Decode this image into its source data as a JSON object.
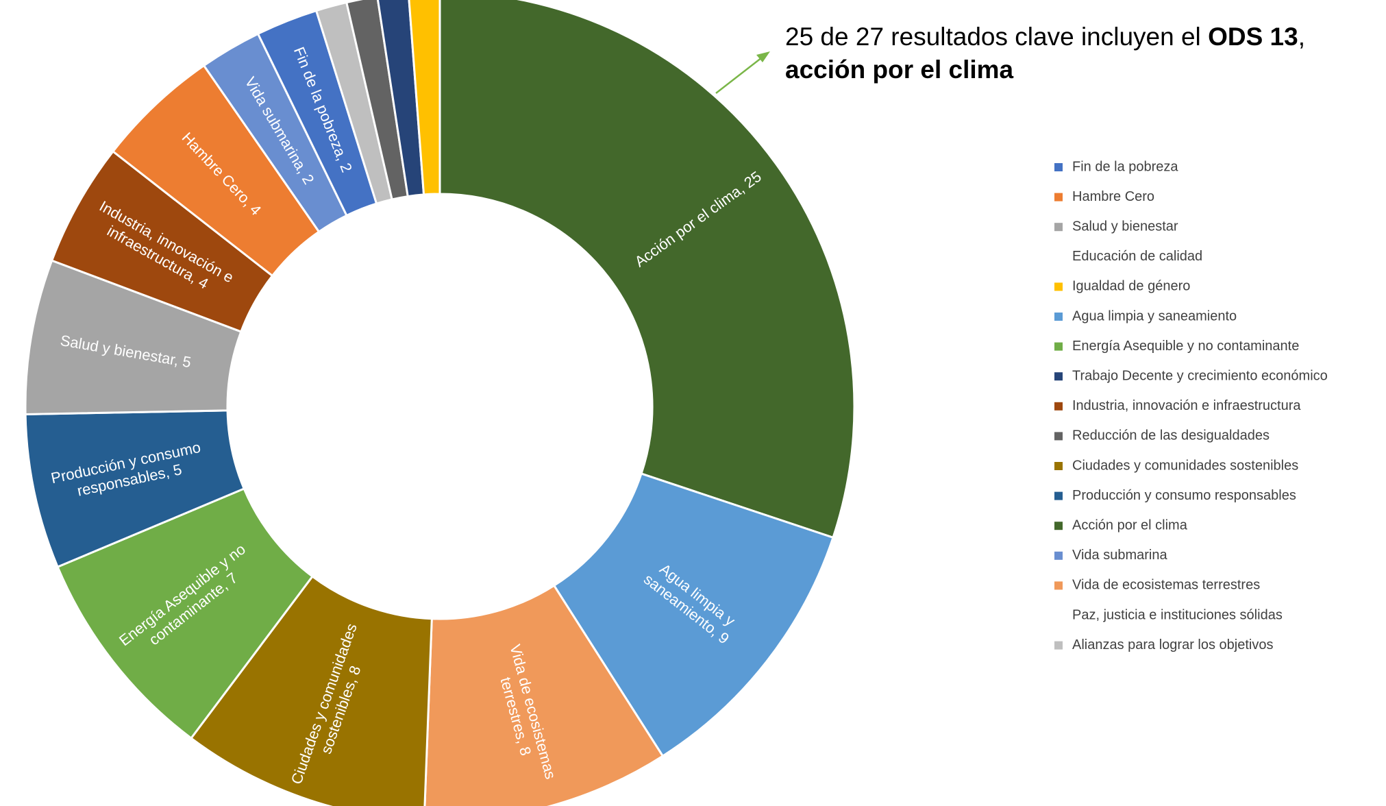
{
  "chart_data": {
    "type": "donut",
    "annotation": [
      [
        {
          "text": "25 de 27 resultados clave incluyen el ",
          "bold": false
        },
        {
          "text": "ODS 13",
          "bold": true
        },
        {
          "text": ",",
          "bold": false
        }
      ],
      [
        {
          "text": "acción por el clima",
          "bold": true
        }
      ]
    ],
    "values": [
      25,
      9,
      8,
      8,
      7,
      5,
      5,
      4,
      4,
      2,
      2,
      1,
      1,
      1,
      1
    ],
    "colors": [
      "#43682b",
      "#5b9bd5",
      "#f0995a",
      "#997300",
      "#70ad47",
      "#255e91",
      "#a5a5a5",
      "#9e480e",
      "#ed7d31",
      "#698ed0",
      "#4472c4",
      "#bfbfbf",
      "#636363",
      "#264478",
      "#ffc000"
    ],
    "value_labels": [
      "Acción por el clima, 25",
      "Agua limpia y\nsaneamiento, 9",
      "Vida de ecosistemas\nterrestres, 8",
      "Ciudades y comunidades\nsostenibles, 8",
      "Energía Asequible y no\ncontaminante, 7",
      "Producción y consumo\nresponsables, 5",
      "Salud y bienestar, 5",
      "Industria, innovación e\ninfraestructura, 4",
      "Hambre Cero, 4",
      "Vida submarina, 2",
      "Fin de la pobreza, 2",
      null,
      null,
      null,
      null
    ],
    "legend": [
      {
        "name": "Fin de la pobreza",
        "color": "#4472c4"
      },
      {
        "name": "Hambre Cero",
        "color": "#ed7d31"
      },
      {
        "name": "Salud y bienestar",
        "color": "#a5a5a5"
      },
      {
        "name": "Educación de calidad",
        "color": null
      },
      {
        "name": "Igualdad de género",
        "color": "#ffc000"
      },
      {
        "name": "Agua limpia y saneamiento",
        "color": "#5b9bd5"
      },
      {
        "name": "Energía Asequible y no contaminante",
        "color": "#70ad47"
      },
      {
        "name": "Trabajo Decente y crecimiento económico",
        "color": "#264478"
      },
      {
        "name": "Industria, innovación e infraestructura",
        "color": "#9e480e"
      },
      {
        "name": "Reducción de las desigualdades",
        "color": "#636363"
      },
      {
        "name": "Ciudades y comunidades sostenibles",
        "color": "#997300"
      },
      {
        "name": "Producción y consumo responsables",
        "color": "#255e91"
      },
      {
        "name": "Acción por el clima",
        "color": "#43682b"
      },
      {
        "name": "Vida submarina",
        "color": "#698ed0"
      },
      {
        "name": "Vida de ecosistemas terrestres",
        "color": "#f0995a"
      },
      {
        "name": "Paz, justicia e instituciones sólidas",
        "color": null
      },
      {
        "name": "Alianzas para lograr los objetivos",
        "color": "#bfbfbf"
      }
    ]
  }
}
